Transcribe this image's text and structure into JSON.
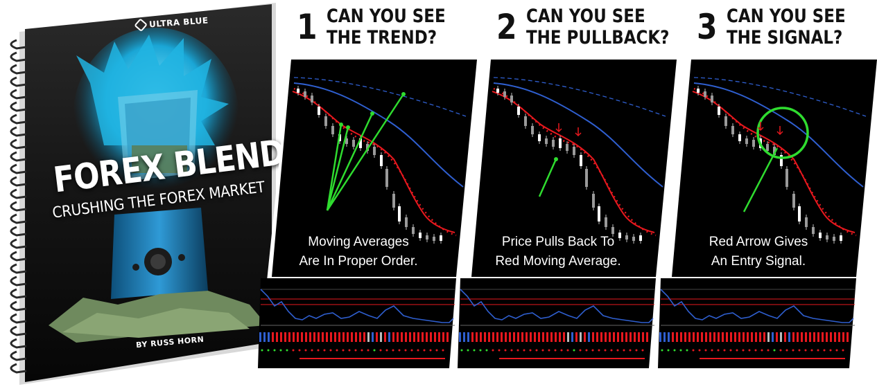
{
  "cover": {
    "brand": "ULTRA BLUE",
    "title": "FOREX BLENDER",
    "subtitle": "CRUSHING THE FOREX MARKET",
    "author": "BY RUSS HORN"
  },
  "steps": [
    {
      "number": "1",
      "line1": "CAN YOU SEE",
      "line2": "THE TREND?",
      "caption1": "Moving Averages",
      "caption2": "Are In Proper Order."
    },
    {
      "number": "2",
      "line1": "CAN YOU SEE",
      "line2": "THE PULLBACK?",
      "caption1": "Price Pulls Back To",
      "caption2": "Red Moving Average."
    },
    {
      "number": "3",
      "line1": "CAN YOU SEE",
      "line2": "THE SIGNAL?",
      "caption1": "Red Arrow Gives",
      "caption2": "An Entry Signal."
    }
  ],
  "colors": {
    "chart_bg": "#000000",
    "fast_ma": "#e8181e",
    "slow_ma": "#2f5fd0",
    "dotted_ma": "#e8181e",
    "annotation": "#2fdc2f"
  }
}
